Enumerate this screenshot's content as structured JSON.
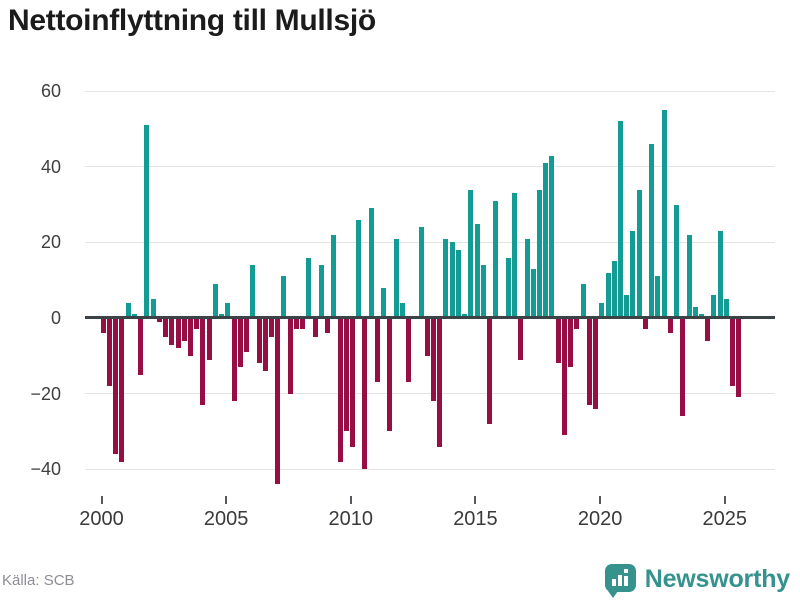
{
  "title": "Nettoinflyttning till Mullsjö",
  "source": "Källa: SCB",
  "brand": {
    "name": "Newsworthy",
    "icon": "bar-chart-speech-bubble-icon"
  },
  "colors": {
    "positive": "#149b93",
    "negative": "#970e45",
    "axis": "#3c4347",
    "grid": "#e4e4e4",
    "brand_teal": "#35928d",
    "title_text": "#1b1b1b",
    "tick_text": "#3f3f3f",
    "source_text": "#8d8d96"
  },
  "chart_data": {
    "type": "bar",
    "title": "Nettoinflyttning till Mullsjö",
    "frequency": "quarterly",
    "start_period": "2000-Q1",
    "end_period": "2025-Q3",
    "xlabel": "",
    "ylabel": "",
    "ylim": [
      -50,
      62
    ],
    "grid": "horizontal",
    "legend": "none",
    "y_tick_values": [
      60,
      40,
      20,
      0,
      -20,
      -40
    ],
    "y_tick_labels": [
      "60",
      "40",
      "20",
      "0",
      "−20",
      "−40"
    ],
    "x_tick_years": [
      2000,
      2005,
      2010,
      2015,
      2020,
      2025
    ],
    "x_tick_labels": [
      "2000",
      "2005",
      "2010",
      "2015",
      "2020",
      "2025"
    ],
    "positive_color": "#149b93",
    "negative_color": "#970e45",
    "values": [
      -4,
      -18,
      -36,
      -38,
      4,
      1,
      -15,
      51,
      5,
      -1,
      -5,
      -7,
      -8,
      -6,
      -10,
      -3,
      -23,
      -11,
      9,
      1,
      4,
      -22,
      -13,
      -9,
      14,
      -12,
      -14,
      -5,
      -44,
      11,
      -20,
      -3,
      -3,
      16,
      -5,
      14,
      -4,
      22,
      -38,
      -30,
      -34,
      26,
      -40,
      29,
      -17,
      8,
      -30,
      21,
      4,
      -17,
      0,
      24,
      -10,
      -22,
      -34,
      21,
      20,
      18,
      1,
      34,
      25,
      14,
      -28,
      31,
      0,
      16,
      33,
      -11,
      21,
      13,
      34,
      41,
      43,
      -12,
      -31,
      -13,
      -3,
      9,
      -23,
      -24,
      4,
      12,
      15,
      52,
      6,
      23,
      34,
      -3,
      46,
      11,
      55,
      -4,
      30,
      -26,
      22,
      3,
      1,
      -6,
      6,
      23,
      5,
      -18,
      -21
    ]
  }
}
